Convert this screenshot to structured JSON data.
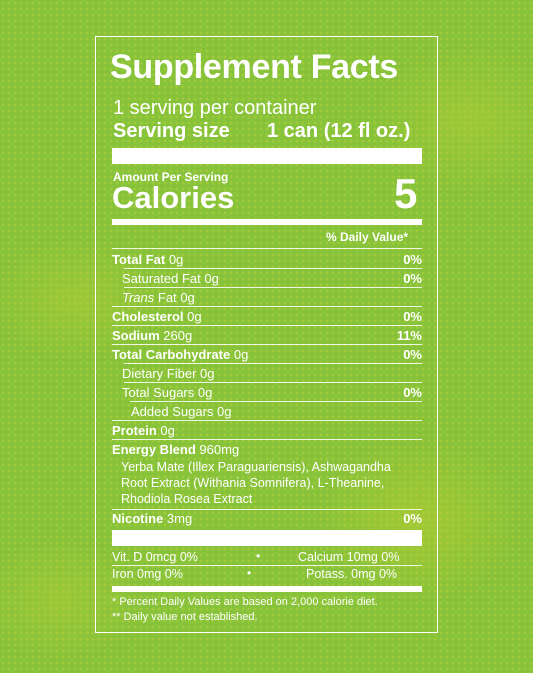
{
  "title": "Supplement Facts",
  "servings_per_container": "1 serving per container",
  "serving_size": {
    "label": "Serving size",
    "value": "1 can (12 fl oz.)"
  },
  "amount_per_serving": "Amount Per Serving",
  "calories": {
    "label": "Calories",
    "value": "5"
  },
  "daily_value_header": "% Daily Value*",
  "rows": {
    "total_fat": {
      "name": "Total Fat",
      "amount": "0g",
      "dv": "0%"
    },
    "saturated_fat": {
      "name": "Saturated Fat",
      "amount": "0g",
      "dv": "0%"
    },
    "trans_fat": {
      "name_italic": "Trans",
      "name_rest": "Fat",
      "amount": "0g"
    },
    "cholesterol": {
      "name": "Cholesterol",
      "amount": "0g",
      "dv": "0%"
    },
    "sodium": {
      "name": "Sodium",
      "amount": "260g",
      "dv": "11%"
    },
    "total_carbohydrate": {
      "name": "Total Carbohydrate",
      "amount": "0g",
      "dv": "0%"
    },
    "dietary_fiber": {
      "name": "Dietary Fiber",
      "amount": "0g"
    },
    "total_sugars": {
      "name": "Total Sugars",
      "amount": "0g",
      "dv": "0%"
    },
    "added_sugars": {
      "name": "Added Sugars",
      "amount": "0g"
    },
    "protein": {
      "name": "Protein",
      "amount": "0g"
    },
    "energy_blend": {
      "name": "Energy Blend",
      "amount": "960mg",
      "ingredients": [
        "Yerba Mate (Illex Paraguariensis), Ashwagandha",
        "Root Extract (Withania Somnifera), L-Theanine,",
        "Rhodiola Rosea Extract"
      ]
    },
    "nicotine": {
      "name": "Nicotine",
      "amount": "3mg",
      "dv": "0%"
    }
  },
  "minerals": [
    {
      "text": "Vit. D  0mcg  0%"
    },
    {
      "text": "Calcium  10mg  0%"
    },
    {
      "text": "Iron  0mg  0%"
    },
    {
      "text": "Potass.  0mg  0%"
    }
  ],
  "minerals_separator": "•",
  "footnotes": [
    "* Percent Daily Values are based on 2,000 calorie diet.",
    "** Daily value not established."
  ],
  "colors": {
    "background": "#86c23a",
    "text": "#ffffff"
  }
}
